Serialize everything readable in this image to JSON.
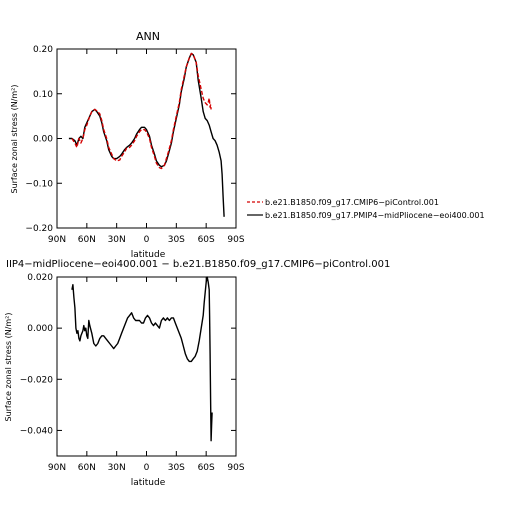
{
  "chart_data": [
    {
      "type": "line",
      "title": "ANN",
      "xlabel": "latitude",
      "ylabel": "Surface zonal stress (N/m²)",
      "xlim": [
        90,
        -90
      ],
      "ylim": [
        -0.2,
        0.2
      ],
      "x_ticks": [
        90,
        60,
        30,
        0,
        -30,
        -60,
        -90
      ],
      "x_tick_labels": [
        "90N",
        "60N",
        "30N",
        "0",
        "30S",
        "60S",
        "90S"
      ],
      "y_ticks": [
        -0.2,
        -0.1,
        0.0,
        0.1,
        0.2
      ],
      "y_tick_labels": [
        "−0.20",
        "−0.10",
        "0.00",
        "0.10",
        "0.20"
      ],
      "legend": "right",
      "series": [
        {
          "name": "b.e21.B1850.f09_g17.CMIP6−piControl.001",
          "color": "#d40000",
          "dash": true,
          "x": [
            75,
            72,
            70,
            68,
            66,
            64,
            62,
            60,
            57,
            55,
            52,
            50,
            47,
            45,
            43,
            40,
            38,
            35,
            33,
            30,
            27,
            25,
            22,
            20,
            17,
            15,
            12,
            10,
            7,
            5,
            2,
            0,
            -3,
            -5,
            -8,
            -10,
            -13,
            -15,
            -18,
            -20,
            -22,
            -25,
            -27,
            -30,
            -33,
            -35,
            -38,
            -40,
            -43,
            -45,
            -47,
            -50,
            -52,
            -55,
            -57,
            -59,
            -61,
            -62,
            -63,
            -64,
            -64.5,
            -65
          ],
          "y": [
            0.0,
            -0.01,
            -0.02,
            0.0,
            -0.01,
            0.0,
            0.02,
            0.03,
            0.05,
            0.06,
            0.065,
            0.062,
            0.055,
            0.04,
            0.02,
            0.0,
            -0.02,
            -0.035,
            -0.045,
            -0.05,
            -0.048,
            -0.04,
            -0.03,
            -0.022,
            -0.02,
            -0.015,
            -0.005,
            0.005,
            0.015,
            0.02,
            0.02,
            0.015,
            0.0,
            -0.02,
            -0.04,
            -0.055,
            -0.065,
            -0.067,
            -0.06,
            -0.045,
            -0.03,
            -0.005,
            0.02,
            0.05,
            0.08,
            0.11,
            0.14,
            0.16,
            0.18,
            0.19,
            0.188,
            0.17,
            0.14,
            0.11,
            0.09,
            0.08,
            0.075,
            0.08,
            0.09,
            0.07,
            0.075,
            0.065
          ]
        },
        {
          "name": "b.e21.B1850.f09_g17.PMIP4−midPliocene−eoi400.001",
          "color": "#000000",
          "dash": false,
          "x": [
            78,
            75,
            72,
            70,
            68,
            66,
            64,
            62,
            60,
            57,
            55,
            52,
            50,
            47,
            45,
            43,
            40,
            38,
            35,
            33,
            30,
            27,
            25,
            22,
            20,
            17,
            15,
            12,
            10,
            7,
            5,
            2,
            0,
            -3,
            -5,
            -8,
            -10,
            -13,
            -15,
            -18,
            -20,
            -22,
            -25,
            -27,
            -30,
            -33,
            -35,
            -38,
            -40,
            -43,
            -45,
            -47,
            -50,
            -52,
            -55,
            -57,
            -59,
            -61,
            -63,
            -65,
            -67,
            -69,
            -71,
            -73,
            -75,
            -76,
            -77,
            -78
          ],
          "y": [
            0.0,
            0.0,
            -0.005,
            -0.015,
            0.0,
            0.005,
            0.0,
            0.025,
            0.035,
            0.05,
            0.06,
            0.065,
            0.06,
            0.05,
            0.035,
            0.015,
            -0.005,
            -0.025,
            -0.04,
            -0.045,
            -0.045,
            -0.04,
            -0.035,
            -0.025,
            -0.02,
            -0.015,
            -0.01,
            0.0,
            0.01,
            0.02,
            0.025,
            0.025,
            0.02,
            0.005,
            -0.015,
            -0.035,
            -0.05,
            -0.06,
            -0.063,
            -0.06,
            -0.05,
            -0.035,
            -0.01,
            0.015,
            0.045,
            0.075,
            0.105,
            0.135,
            0.16,
            0.18,
            0.19,
            0.187,
            0.17,
            0.13,
            0.09,
            0.06,
            0.045,
            0.04,
            0.03,
            0.015,
            0.0,
            -0.005,
            -0.015,
            -0.03,
            -0.05,
            -0.08,
            -0.13,
            -0.175
          ]
        }
      ]
    },
    {
      "type": "line",
      "title": "IIP4−midPliocene−eoi400.001  −  b.e21.B1850.f09_g17.CMIP6−piControl.001",
      "xlabel": "latitude",
      "ylabel": "Surface zonal stress (N/m²)",
      "xlim": [
        90,
        -90
      ],
      "ylim": [
        -0.05,
        0.02
      ],
      "x_ticks": [
        90,
        60,
        30,
        0,
        -30,
        -60,
        -90
      ],
      "x_tick_labels": [
        "90N",
        "60N",
        "30N",
        "0",
        "30S",
        "60S",
        "90S"
      ],
      "y_ticks": [
        -0.04,
        -0.02,
        0.0,
        0.02
      ],
      "y_tick_labels": [
        "−0.040",
        "−0.020",
        "0.000",
        "0.020"
      ],
      "series": [
        {
          "color": "#000000",
          "x": [
            75,
            74,
            73,
            72,
            71,
            70,
            69,
            68,
            67,
            66,
            65,
            64,
            63,
            62,
            61,
            60,
            59,
            58,
            57,
            55,
            53,
            51,
            49,
            47,
            45,
            43,
            41,
            39,
            37,
            35,
            33,
            31,
            29,
            27,
            25,
            23,
            21,
            19,
            17,
            15,
            13,
            11,
            9,
            7,
            5,
            3,
            1,
            -1,
            -3,
            -5,
            -7,
            -9,
            -11,
            -13,
            -15,
            -17,
            -19,
            -21,
            -23,
            -25,
            -27,
            -29,
            -31,
            -33,
            -35,
            -37,
            -39,
            -41,
            -43,
            -45,
            -47,
            -49,
            -51,
            -53,
            -55,
            -57,
            -58,
            -59,
            -60,
            -61,
            -62,
            -63,
            -63.5,
            -64,
            -64.5,
            -65,
            -65.5,
            -66
          ],
          "y": [
            0.015,
            0.017,
            0.012,
            0.008,
            0.0,
            -0.002,
            -0.001,
            -0.004,
            -0.005,
            -0.003,
            -0.002,
            -0.001,
            0.001,
            -0.001,
            0.0,
            -0.003,
            -0.004,
            0.003,
            0.001,
            -0.002,
            -0.006,
            -0.007,
            -0.006,
            -0.004,
            -0.003,
            -0.003,
            -0.004,
            -0.005,
            -0.006,
            -0.007,
            -0.008,
            -0.007,
            -0.006,
            -0.004,
            -0.002,
            0.0,
            0.002,
            0.004,
            0.005,
            0.006,
            0.004,
            0.003,
            0.003,
            0.003,
            0.002,
            0.002,
            0.004,
            0.005,
            0.004,
            0.002,
            0.001,
            0.002,
            0.001,
            0.0,
            0.003,
            0.004,
            0.003,
            0.004,
            0.003,
            0.004,
            0.004,
            0.002,
            0.0,
            -0.002,
            -0.004,
            -0.007,
            -0.01,
            -0.012,
            -0.013,
            -0.013,
            -0.012,
            -0.011,
            -0.009,
            -0.005,
            0.0,
            0.005,
            0.01,
            0.014,
            0.018,
            0.02,
            0.018,
            0.015,
            0.005,
            -0.01,
            -0.028,
            -0.044,
            -0.038,
            -0.033
          ]
        }
      ]
    }
  ]
}
